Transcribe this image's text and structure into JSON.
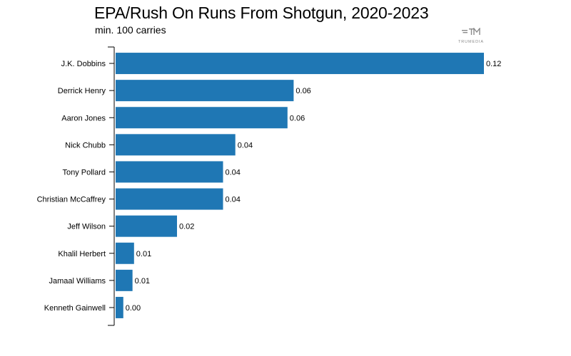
{
  "chart_data": {
    "type": "bar",
    "orientation": "horizontal",
    "title": "EPA/Rush On Runs From Shotgun, 2020-2023",
    "subtitle": "min. 100 carries",
    "categories": [
      "J.K. Dobbins",
      "Derrick Henry",
      "Aaron Jones",
      "Nick Chubb",
      "Tony Pollard",
      "Christian McCaffrey",
      "Jeff Wilson",
      "Khalil Herbert",
      "Jamaal Williams",
      "Kenneth Gainwell"
    ],
    "values": [
      0.12,
      0.058,
      0.056,
      0.039,
      0.035,
      0.035,
      0.02,
      0.006,
      0.0055,
      0.0025
    ],
    "value_labels": [
      "0.12",
      "0.06",
      "0.06",
      "0.04",
      "0.04",
      "0.04",
      "0.02",
      "0.01",
      "0.01",
      "0.00"
    ],
    "xlim": [
      0,
      0.12
    ],
    "grid": false,
    "bar_color": "#1f77b4"
  },
  "logo": {
    "icon": "trumedia-logo-icon",
    "text": "TRUMEDIA"
  }
}
